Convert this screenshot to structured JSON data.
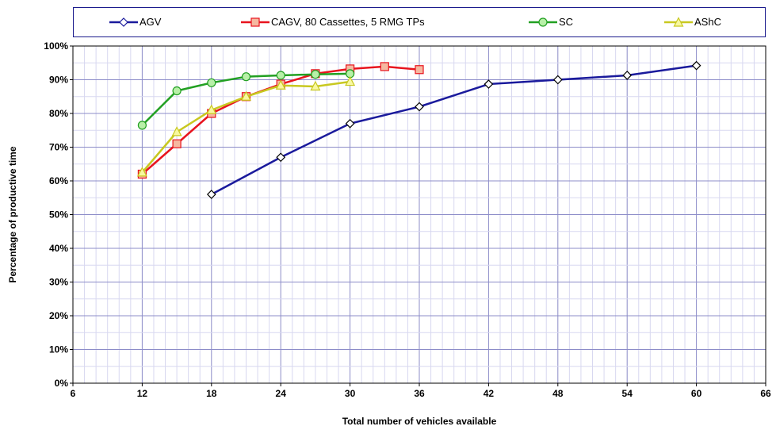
{
  "chart_data": {
    "type": "line",
    "xlabel": "Total number of vehicles available",
    "ylabel": "Percentage of productive time",
    "xlim": [
      6,
      66
    ],
    "ylim": [
      0,
      100
    ],
    "x_ticks": [
      "6",
      "12",
      "18",
      "24",
      "30",
      "36",
      "42",
      "48",
      "54",
      "60",
      "66"
    ],
    "y_ticks": [
      "0%",
      "10%",
      "20%",
      "30%",
      "40%",
      "50%",
      "60%",
      "70%",
      "80%",
      "90%",
      "100%"
    ],
    "grid": true,
    "legend_position": "top",
    "series": [
      {
        "name": "AGV",
        "color": "#1a1a9c",
        "marker": "diamond",
        "marker_fill": "#ffffff",
        "points": [
          [
            18,
            56
          ],
          [
            24,
            67
          ],
          [
            30,
            77
          ],
          [
            36,
            82
          ],
          [
            42,
            88.7
          ],
          [
            48,
            90
          ],
          [
            54,
            91.3
          ],
          [
            60,
            94.2
          ]
        ]
      },
      {
        "name": "CAGV, 80 Cassettes, 5 RMG TPs",
        "color": "#e8141e",
        "marker": "square",
        "marker_fill": "#f5b8a0",
        "points": [
          [
            12,
            62
          ],
          [
            15,
            71
          ],
          [
            18,
            80
          ],
          [
            21,
            85
          ],
          [
            24,
            88.7
          ],
          [
            27,
            91.8
          ],
          [
            30,
            93.2
          ],
          [
            33,
            93.9
          ],
          [
            36,
            93
          ]
        ]
      },
      {
        "name": "SC",
        "color": "#22a022",
        "marker": "circle",
        "marker_fill": "#b8f0a8",
        "points": [
          [
            12,
            76.5
          ],
          [
            15,
            86.7
          ],
          [
            18,
            89.1
          ],
          [
            21,
            90.9
          ],
          [
            24,
            91.3
          ],
          [
            27,
            91.6
          ],
          [
            30,
            91.8
          ]
        ]
      },
      {
        "name": "AShC",
        "color": "#c8c820",
        "marker": "triangle",
        "marker_fill": "#f8f8a0",
        "points": [
          [
            12,
            62.5
          ],
          [
            15,
            74.5
          ],
          [
            18,
            81
          ],
          [
            21,
            85
          ],
          [
            24,
            88.3
          ],
          [
            27,
            88
          ],
          [
            30,
            89.4
          ]
        ]
      }
    ]
  }
}
